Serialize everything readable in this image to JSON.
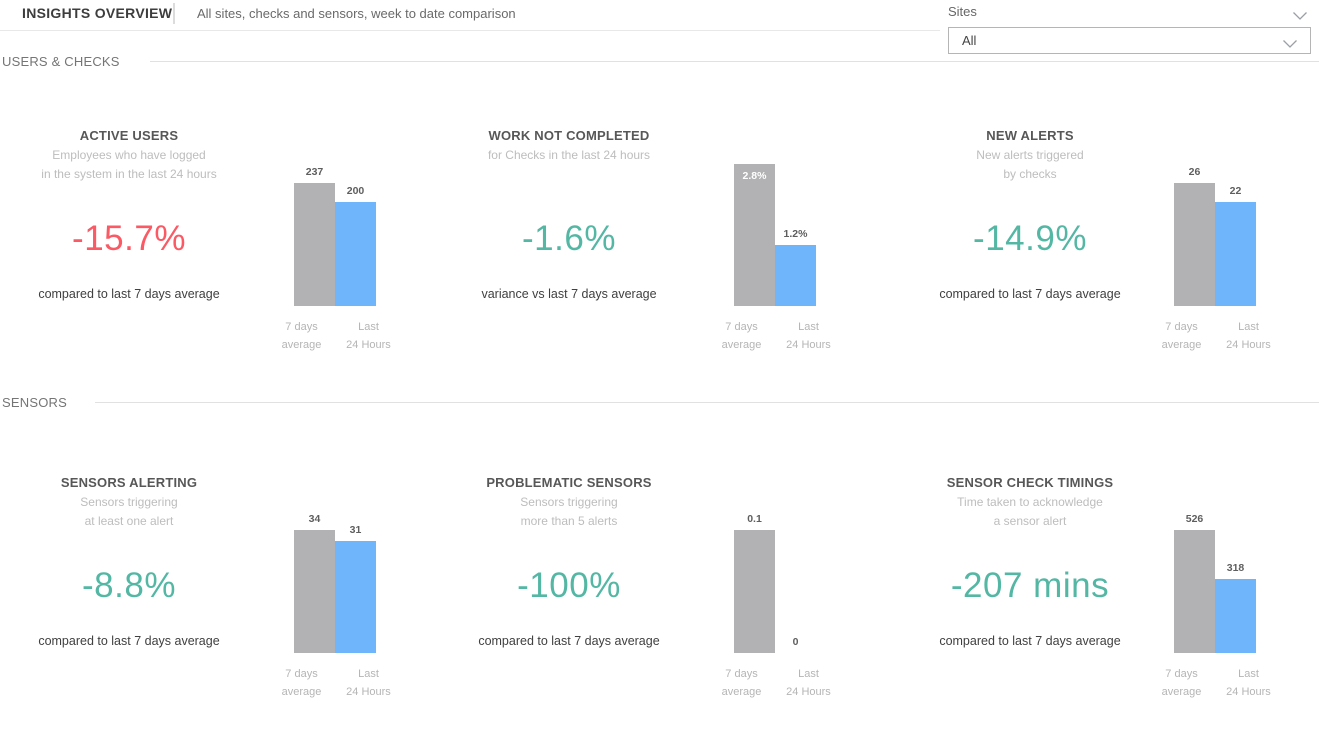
{
  "header": {
    "title": "INSIGHTS OVERVIEW",
    "subtitle": "All sites, checks and sensors, week to date comparison"
  },
  "slicer": {
    "label": "Sites",
    "value": "All"
  },
  "sections": [
    {
      "title": "USERS & CHECKS"
    },
    {
      "title": "SENSORS"
    }
  ],
  "colors": {
    "negative_red": "#fb5964",
    "improvement_teal": "#53b7a4",
    "bar_gray": "#b2b2b4",
    "bar_blue": "#6fb5fb"
  },
  "chart_data": [
    {
      "type": "bar",
      "section": "USERS & CHECKS",
      "title": "ACTIVE USERS",
      "subtitle_line1": "Employees who have logged",
      "subtitle_line2": "in the system in the last 24 hours",
      "big_value": "-15.7%",
      "big_value_color": "#fb5964",
      "caption": "compared to last 7 days average",
      "categories": [
        "7 days average",
        "Last 24 Hours"
      ],
      "cat_line1": [
        "7 days",
        "Last"
      ],
      "cat_line2": [
        "average",
        "24 Hours"
      ],
      "values": [
        237,
        200
      ],
      "value_labels": [
        "237",
        "200"
      ],
      "bar_colors": [
        "#b2b2b4",
        "#6fb5fb"
      ],
      "label_inside": [
        false,
        false
      ],
      "ylim": [
        0,
        237
      ]
    },
    {
      "type": "bar",
      "section": "USERS & CHECKS",
      "title": "WORK NOT COMPLETED",
      "subtitle_line1": "for Checks in the last 24 hours",
      "subtitle_line2": "",
      "big_value": "-1.6%",
      "big_value_color": "#53b7a4",
      "caption": "variance vs last 7 days average",
      "categories": [
        "7 days average",
        "Last 24 Hours"
      ],
      "cat_line1": [
        "7 days",
        "Last"
      ],
      "cat_line2": [
        "average",
        "24 Hours"
      ],
      "values": [
        2.8,
        1.2
      ],
      "value_labels": [
        "2.8%",
        "1.2%"
      ],
      "bar_colors": [
        "#b2b2b4",
        "#6fb5fb"
      ],
      "label_inside": [
        true,
        false
      ],
      "ylim": [
        0,
        2.8
      ]
    },
    {
      "type": "bar",
      "section": "USERS & CHECKS",
      "title": "NEW ALERTS",
      "subtitle_line1": "New alerts triggered",
      "subtitle_line2": "by checks",
      "big_value": "-14.9%",
      "big_value_color": "#53b7a4",
      "caption": "compared to last 7 days average",
      "categories": [
        "7 days average",
        "Last 24 Hours"
      ],
      "cat_line1": [
        "7 days",
        "Last"
      ],
      "cat_line2": [
        "average",
        "24 Hours"
      ],
      "values": [
        26,
        22
      ],
      "value_labels": [
        "26",
        "22"
      ],
      "bar_colors": [
        "#b2b2b4",
        "#6fb5fb"
      ],
      "label_inside": [
        false,
        false
      ],
      "ylim": [
        0,
        26
      ]
    },
    {
      "type": "bar",
      "section": "SENSORS",
      "title": "SENSORS ALERTING",
      "subtitle_line1": "Sensors triggering",
      "subtitle_line2": "at least one alert",
      "big_value": "-8.8%",
      "big_value_color": "#53b7a4",
      "caption": "compared to last 7 days average",
      "categories": [
        "7 days average",
        "Last 24 Hours"
      ],
      "cat_line1": [
        "7 days",
        "Last"
      ],
      "cat_line2": [
        "average",
        "24 Hours"
      ],
      "values": [
        34,
        31
      ],
      "value_labels": [
        "34",
        "31"
      ],
      "bar_colors": [
        "#b2b2b4",
        "#6fb5fb"
      ],
      "label_inside": [
        false,
        false
      ],
      "ylim": [
        0,
        34
      ]
    },
    {
      "type": "bar",
      "section": "SENSORS",
      "title": "PROBLEMATIC SENSORS",
      "subtitle_line1": "Sensors triggering",
      "subtitle_line2": "more than 5 alerts",
      "big_value": "-100%",
      "big_value_color": "#53b7a4",
      "caption": "compared to last 7 days average",
      "categories": [
        "7 days average",
        "Last 24 Hours"
      ],
      "cat_line1": [
        "7 days",
        "Last"
      ],
      "cat_line2": [
        "average",
        "24 Hours"
      ],
      "values": [
        0.1,
        0
      ],
      "value_labels": [
        "0.1",
        "0"
      ],
      "bar_colors": [
        "#b2b2b4",
        "#6fb5fb"
      ],
      "label_inside": [
        false,
        false
      ],
      "ylim": [
        0,
        0.1
      ]
    },
    {
      "type": "bar",
      "section": "SENSORS",
      "title": "SENSOR CHECK TIMINGS",
      "subtitle_line1": "Time taken to acknowledge",
      "subtitle_line2": "a sensor alert",
      "big_value": "-207 mins",
      "big_value_color": "#53b7a4",
      "caption": "compared to last 7 days average",
      "categories": [
        "7 days average",
        "Last 24 Hours"
      ],
      "cat_line1": [
        "7 days",
        "Last"
      ],
      "cat_line2": [
        "average",
        "24 Hours"
      ],
      "values": [
        526,
        318
      ],
      "value_labels": [
        "526",
        "318"
      ],
      "bar_colors": [
        "#b2b2b4",
        "#6fb5fb"
      ],
      "label_inside": [
        false,
        false
      ],
      "ylim": [
        0,
        526
      ]
    }
  ]
}
